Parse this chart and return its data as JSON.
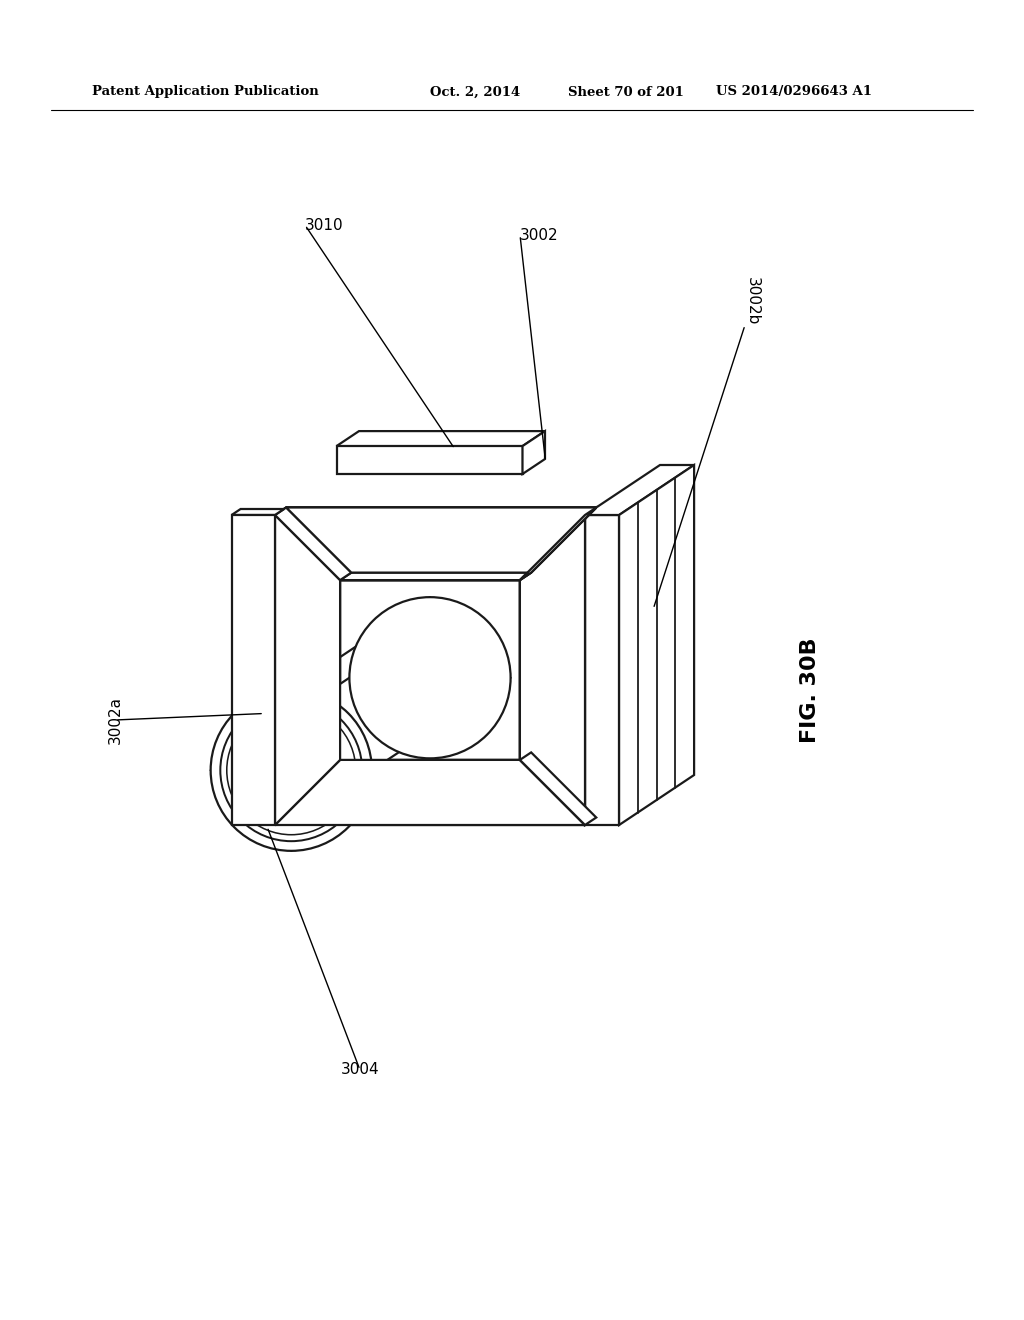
{
  "bg_color": "#ffffff",
  "line_color": "#1a1a1a",
  "line_width": 1.6,
  "fig_width": 10.24,
  "fig_height": 13.2,
  "header_text": "Patent Application Publication",
  "header_date": "Oct. 2, 2014",
  "header_sheet": "Sheet 70 of 201",
  "header_patent": "US 2014/0296643 A1",
  "fig_label": "FIG. 30B",
  "label_fontsize": 11,
  "header_fontsize": 9.5
}
